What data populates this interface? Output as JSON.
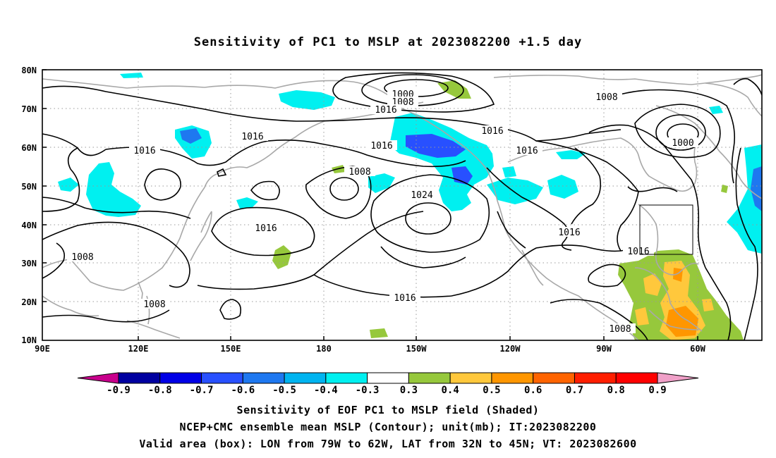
{
  "title": "Sensitivity of PC1 to MSLP at 2023082200 +1.5 day",
  "lat_labels": [
    "80N",
    "70N",
    "60N",
    "50N",
    "40N",
    "30N",
    "20N",
    "10N"
  ],
  "lon_labels": [
    "90E",
    "120E",
    "150E",
    "180",
    "150W",
    "120W",
    "90W",
    "60W"
  ],
  "contour_labels": [
    "1000",
    "1008",
    "1016",
    "1016",
    "1016",
    "1016",
    "1008",
    "1016",
    "1024",
    "1008",
    "1016",
    "1000",
    "1016",
    "1016",
    "1008",
    "1016",
    "1008",
    "1008"
  ],
  "colorbar": {
    "labels": [
      "-0.9",
      "-0.8",
      "-0.7",
      "-0.6",
      "-0.5",
      "-0.4",
      "-0.3",
      "0.3",
      "0.4",
      "0.5",
      "0.6",
      "0.7",
      "0.8",
      "0.9"
    ],
    "colors": [
      "#c8008c",
      "#0000a0",
      "#0000e6",
      "#2850ff",
      "#1e78f0",
      "#00b4f0",
      "#00f0f0",
      "#ffffff",
      "#96c83c",
      "#ffc83c",
      "#ff9600",
      "#ff6400",
      "#ff1e00",
      "#ff0000",
      "#f0a0c8"
    ]
  },
  "captions": {
    "line1": "Sensitivity of EOF PC1 to MSLP field (Shaded)",
    "line2": "NCEP+CMC ensemble mean MSLP (Contour); unit(mb); IT:2023082200",
    "line3": "Valid area (box): LON from 79W to 62W, LAT from 32N to 45N; VT: 2023082600"
  }
}
